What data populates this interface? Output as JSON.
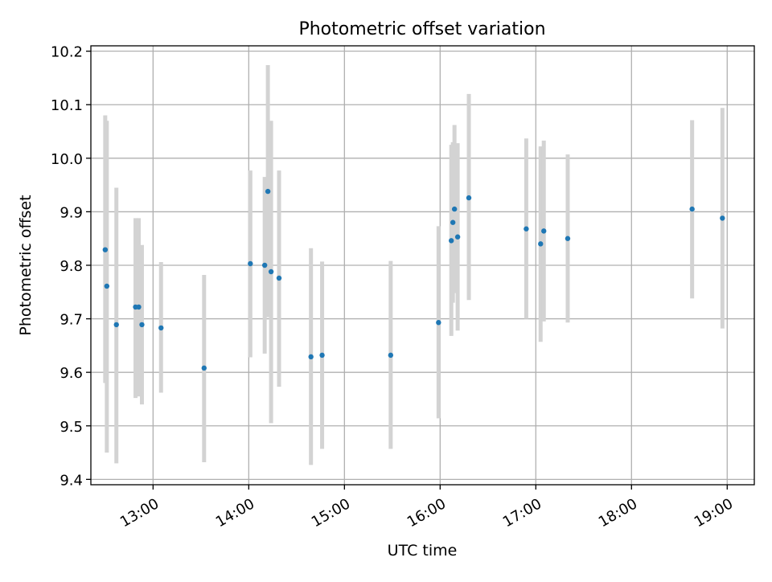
{
  "chart_data": {
    "type": "scatter",
    "title": "Photometric offset variation",
    "xlabel": "UTC time",
    "ylabel": "Photometric offset",
    "x_tick_labels": [
      "13:00",
      "14:00",
      "15:00",
      "16:00",
      "17:00",
      "18:00",
      "19:00"
    ],
    "x_ticks": [
      "13:00",
      "14:00",
      "15:00",
      "16:00",
      "17:00",
      "18:00",
      "19:00"
    ],
    "y_ticks": [
      9.4,
      9.5,
      9.6,
      9.7,
      9.8,
      9.9,
      10.0,
      10.1,
      10.2
    ],
    "y_tick_labels": [
      "9.4",
      "9.5",
      "9.6",
      "9.7",
      "9.8",
      "9.9",
      "10.0",
      "10.1",
      "10.2"
    ],
    "xlim": [
      "12:21",
      "19:17"
    ],
    "ylim": [
      9.39,
      10.21
    ],
    "grid": true,
    "marker_color": "#1f77b4",
    "errorbar_color": "#d3d3d3",
    "points": [
      {
        "x": "12:30",
        "y": 9.829,
        "low": 9.58,
        "high": 10.08
      },
      {
        "x": "12:31",
        "y": 9.761,
        "low": 9.45,
        "high": 10.07
      },
      {
        "x": "12:37",
        "y": 9.689,
        "low": 9.43,
        "high": 9.945
      },
      {
        "x": "12:49",
        "y": 9.722,
        "low": 9.552,
        "high": 9.888
      },
      {
        "x": "12:51",
        "y": 9.722,
        "low": 9.555,
        "high": 9.888
      },
      {
        "x": "12:53",
        "y": 9.689,
        "low": 9.54,
        "high": 9.838
      },
      {
        "x": "13:05",
        "y": 9.683,
        "low": 9.562,
        "high": 9.806
      },
      {
        "x": "13:32",
        "y": 9.608,
        "low": 9.432,
        "high": 9.782
      },
      {
        "x": "14:01",
        "y": 9.803,
        "low": 9.628,
        "high": 9.977
      },
      {
        "x": "14:10",
        "y": 9.8,
        "low": 9.635,
        "high": 9.965
      },
      {
        "x": "14:12",
        "y": 9.938,
        "low": 9.703,
        "high": 10.174
      },
      {
        "x": "14:14",
        "y": 9.788,
        "low": 9.505,
        "high": 10.07
      },
      {
        "x": "14:19",
        "y": 9.776,
        "low": 9.573,
        "high": 9.977
      },
      {
        "x": "14:39",
        "y": 9.629,
        "low": 9.427,
        "high": 9.832
      },
      {
        "x": "14:46",
        "y": 9.632,
        "low": 9.457,
        "high": 9.807
      },
      {
        "x": "15:29",
        "y": 9.632,
        "low": 9.457,
        "high": 9.808
      },
      {
        "x": "15:59",
        "y": 9.693,
        "low": 9.514,
        "high": 9.873
      },
      {
        "x": "16:07",
        "y": 9.846,
        "low": 9.668,
        "high": 10.025
      },
      {
        "x": "16:08",
        "y": 9.88,
        "low": 9.73,
        "high": 10.03
      },
      {
        "x": "16:09",
        "y": 9.905,
        "low": 9.748,
        "high": 10.062
      },
      {
        "x": "16:11",
        "y": 9.853,
        "low": 9.678,
        "high": 10.028
      },
      {
        "x": "16:18",
        "y": 9.926,
        "low": 9.735,
        "high": 10.12
      },
      {
        "x": "16:54",
        "y": 9.868,
        "low": 9.7,
        "high": 10.037
      },
      {
        "x": "17:03",
        "y": 9.84,
        "low": 9.657,
        "high": 10.022
      },
      {
        "x": "17:05",
        "y": 9.864,
        "low": 9.695,
        "high": 10.033
      },
      {
        "x": "17:20",
        "y": 9.85,
        "low": 9.693,
        "high": 10.007
      },
      {
        "x": "18:38",
        "y": 9.905,
        "low": 9.738,
        "high": 10.071
      },
      {
        "x": "18:57",
        "y": 9.888,
        "low": 9.682,
        "high": 10.094
      }
    ]
  }
}
